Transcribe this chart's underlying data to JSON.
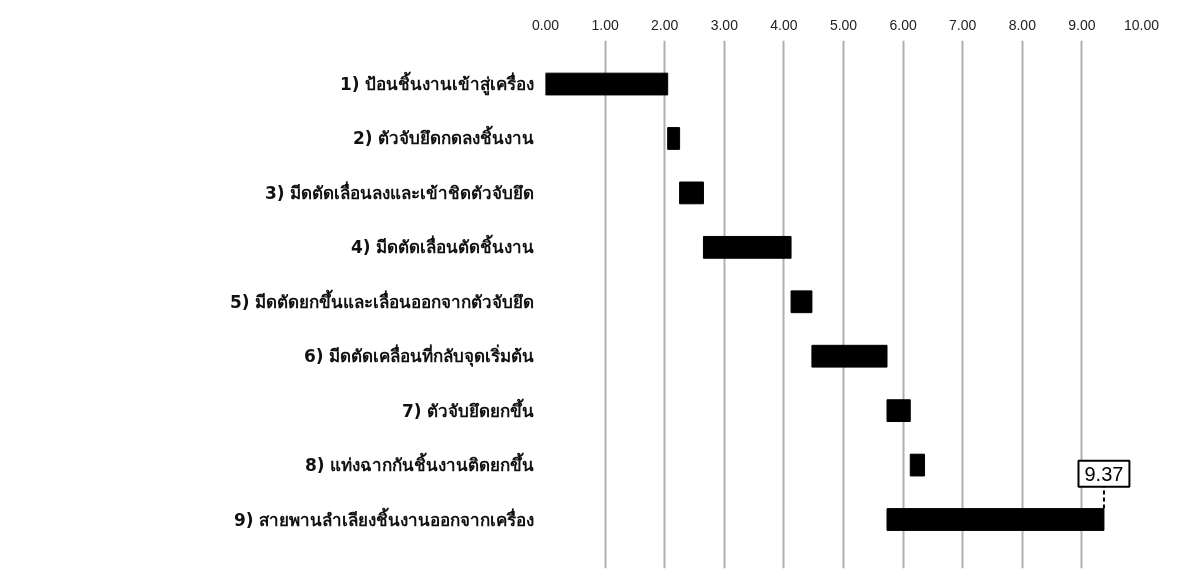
{
  "chart_data": {
    "type": "bar",
    "orientation": "horizontal",
    "categories": [
      "1) ป้อนชิ้นงานเข้าสู่เครื่อง",
      "2) ตัวจับยึดกดลงชิ้นงาน",
      "3) มีดตัดเลื่อนลงและเข้าชิดตัวจับยึด",
      "4) มีดตัดเลื่อนตัดชิ้นงาน",
      "5) มีดตัดยกขึ้นและเลื่อนออกจากตัวจับยึด",
      "6) มีดตัดเคลื่อนที่กลับจุดเริ่มต้น",
      "7) ตัวจับยึดยกขึ้น",
      "8) แท่งฉากกันชิ้นงานติดยกขึ้น",
      "9) สายพานลำเลียงชิ้นงานออกจากเครื่อง"
    ],
    "base": [
      0,
      2.05,
      2.25,
      2.65,
      4.12,
      4.47,
      5.73,
      6.12,
      5.73
    ],
    "values": [
      2.05,
      0.2,
      0.4,
      1.47,
      0.35,
      1.26,
      0.39,
      0.24,
      3.64
    ],
    "color": "#000000",
    "xlim": [
      0,
      10
    ],
    "xticks": [
      {
        "value": 0,
        "label": "0.00"
      },
      {
        "value": 1,
        "label": "1.00"
      },
      {
        "value": 2,
        "label": "2.00"
      },
      {
        "value": 3,
        "label": "3.00"
      },
      {
        "value": 4,
        "label": "4.00"
      },
      {
        "value": 5,
        "label": "5.00"
      },
      {
        "value": 6,
        "label": "6.00"
      },
      {
        "value": 7,
        "label": "7.00"
      },
      {
        "value": 8,
        "label": "8.00"
      },
      {
        "value": 9,
        "label": "9.00"
      },
      {
        "value": 10,
        "label": "10.00"
      }
    ],
    "grid": "x",
    "annotations": [
      {
        "text": "9.37",
        "x": 9.37,
        "y": "9) สายพานลำเลียงชิ้นงานออกจากเครื่อง"
      }
    ]
  }
}
